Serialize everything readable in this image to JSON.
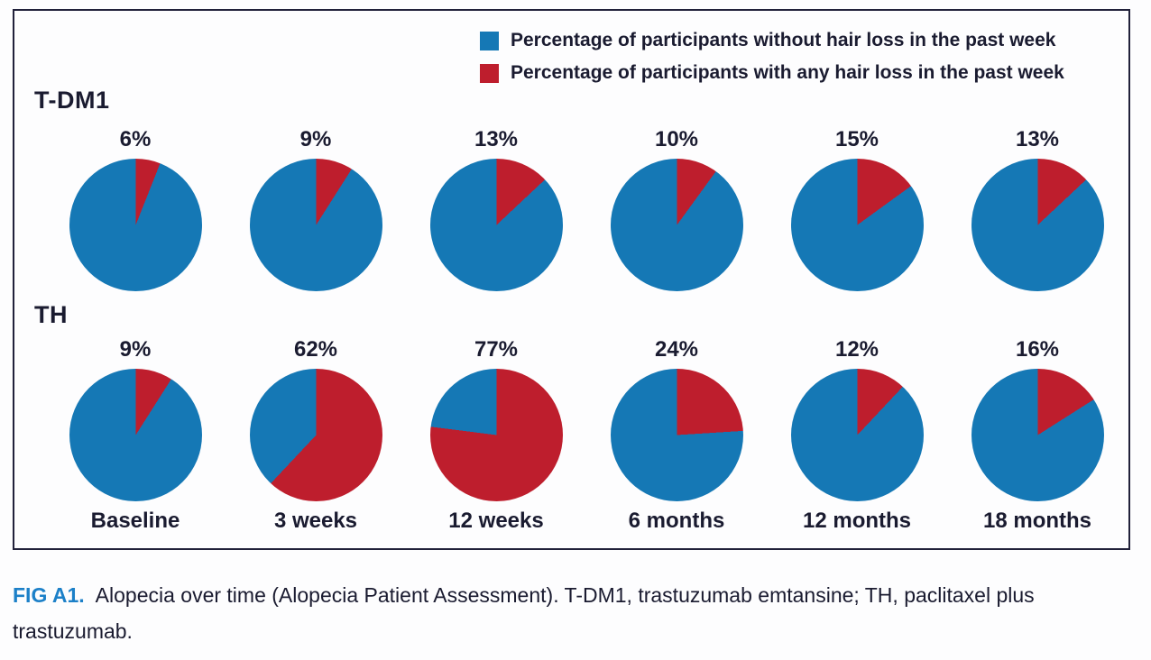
{
  "legend": {
    "items": [
      {
        "key": "without_hair_loss",
        "label": "Percentage of participants without hair loss in the past week",
        "color": "#1578b5"
      },
      {
        "key": "with_hair_loss",
        "label": "Percentage of participants with any hair loss in the past week",
        "color": "#be1e2d"
      }
    ]
  },
  "chart_data": {
    "type": "pie",
    "title": "Alopecia over time (Alopecia Patient Assessment)",
    "description": "Grid of 12 pie charts (2 treatment arms x 6 time points). Each pie shows percent of participants with any hair loss in the past week (red slice, starting at 12 o'clock sweeping clockwise) vs without hair loss (blue remainder = 100 - value).",
    "categories": [
      "Baseline",
      "3 weeks",
      "12 weeks",
      "6 months",
      "12 months",
      "18 months"
    ],
    "series": [
      {
        "name": "T-DM1",
        "values": [
          6,
          9,
          13,
          10,
          15,
          13
        ]
      },
      {
        "name": "TH",
        "values": [
          9,
          62,
          77,
          24,
          12,
          16
        ]
      }
    ],
    "value_label_format": "{value}%",
    "slice_colors": {
      "with_hair_loss": "#be1e2d",
      "without_hair_loss": "#1578b5"
    },
    "legend_position": "top-right",
    "slice_start": "12 o'clock, clockwise"
  },
  "caption": {
    "tag": "FIG A1.",
    "text": "Alopecia over time (Alopecia Patient Assessment). T-DM1, trastuzumab emtansine; TH, paclitaxel plus trastuzumab."
  }
}
